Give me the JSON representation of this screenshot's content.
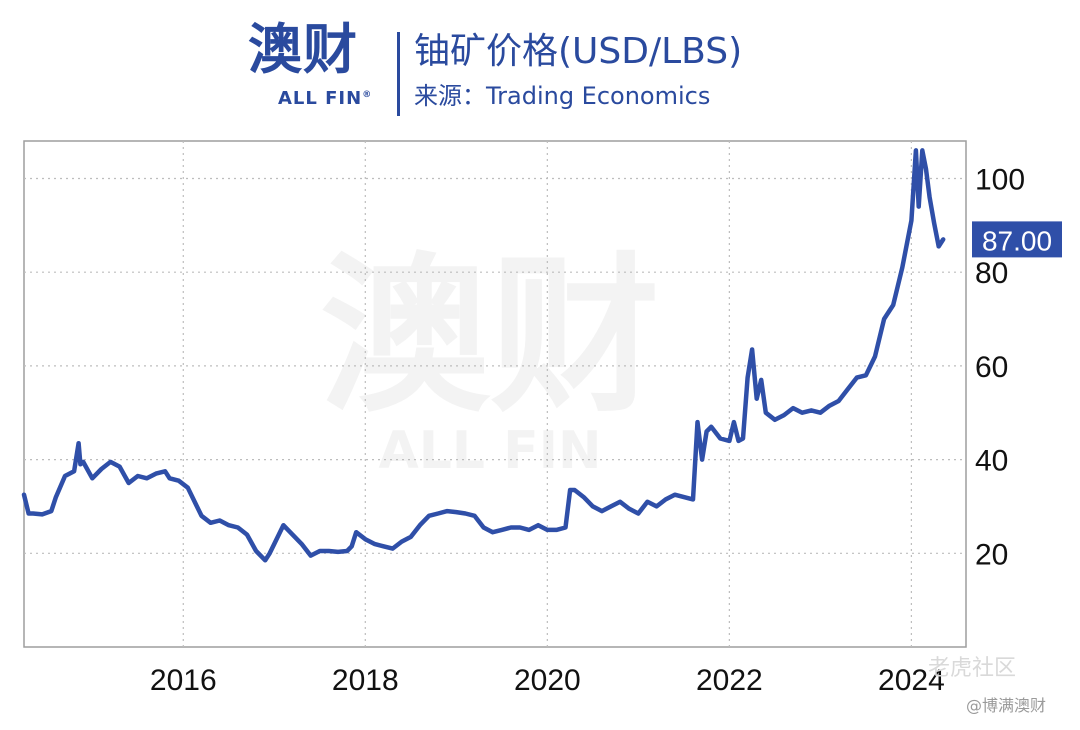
{
  "header": {
    "logo_cn": "澳财",
    "logo_en": "ALL FIN",
    "title": "铀矿价格(USD/LBS)",
    "source": "来源：Trading Economics"
  },
  "watermark": {
    "cn": "澳财",
    "en": "ALL FIN"
  },
  "footer": {
    "note1": "老虎社区",
    "note2": "@博满澳财"
  },
  "colors": {
    "brand": "#2a4a9e",
    "line": "#2f4fa8",
    "grid": "#bdbdbd",
    "axis": "#9e9e9e",
    "last_label_bg": "#2f4fa8"
  },
  "chart_data": {
    "type": "line",
    "title": "铀矿价格(USD/LBS)",
    "xlabel": "",
    "ylabel": "",
    "xlim": [
      2014.25,
      2024.6
    ],
    "ylim": [
      0,
      108
    ],
    "x_ticks": [
      "2016",
      "2018",
      "2020",
      "2022",
      "2024"
    ],
    "x_tick_values": [
      2016,
      2018,
      2020,
      2022,
      2024
    ],
    "y_ticks": [
      "20",
      "40",
      "60",
      "80",
      "100"
    ],
    "y_tick_values": [
      20,
      40,
      60,
      80,
      100
    ],
    "grid": true,
    "y_axis_side": "right",
    "last_value_label": "87.00",
    "series": [
      {
        "x": [
          2014.25,
          2014.3,
          2014.35,
          2014.45,
          2014.55,
          2014.6,
          2014.7,
          2014.8,
          2014.85,
          2014.87,
          2014.9,
          2015.0,
          2015.1,
          2015.2,
          2015.3,
          2015.4,
          2015.5,
          2015.6,
          2015.7,
          2015.8,
          2015.85,
          2015.95,
          2016.05,
          2016.15,
          2016.2,
          2016.3,
          2016.4,
          2016.5,
          2016.6,
          2016.7,
          2016.8,
          2016.9,
          2016.95,
          2017.0,
          2017.1,
          2017.2,
          2017.3,
          2017.4,
          2017.5,
          2017.6,
          2017.7,
          2017.8,
          2017.85,
          2017.9,
          2018.0,
          2018.1,
          2018.2,
          2018.3,
          2018.4,
          2018.5,
          2018.6,
          2018.7,
          2018.8,
          2018.9,
          2019.0,
          2019.1,
          2019.2,
          2019.3,
          2019.4,
          2019.5,
          2019.6,
          2019.7,
          2019.8,
          2019.9,
          2020.0,
          2020.1,
          2020.2,
          2020.25,
          2020.3,
          2020.4,
          2020.5,
          2020.6,
          2020.7,
          2020.8,
          2020.9,
          2021.0,
          2021.1,
          2021.2,
          2021.3,
          2021.4,
          2021.5,
          2021.6,
          2021.65,
          2021.7,
          2021.75,
          2021.8,
          2021.9,
          2022.0,
          2022.05,
          2022.1,
          2022.15,
          2022.2,
          2022.25,
          2022.3,
          2022.35,
          2022.4,
          2022.5,
          2022.6,
          2022.7,
          2022.8,
          2022.9,
          2023.0,
          2023.1,
          2023.2,
          2023.3,
          2023.4,
          2023.5,
          2023.6,
          2023.7,
          2023.8,
          2023.9,
          2024.0,
          2024.05,
          2024.08,
          2024.12,
          2024.16,
          2024.2,
          2024.25,
          2024.3,
          2024.35
        ],
        "y": [
          32.5,
          28.5,
          28.5,
          28.3,
          29.0,
          32.0,
          36.5,
          37.5,
          43.5,
          39.0,
          39.5,
          36.0,
          38.0,
          39.5,
          38.5,
          35.0,
          36.5,
          36.0,
          37.0,
          37.5,
          36.0,
          35.5,
          34.0,
          30.0,
          28.0,
          26.5,
          27.0,
          26.0,
          25.5,
          24.0,
          20.5,
          18.5,
          20.0,
          22.0,
          26.0,
          24.0,
          22.0,
          19.5,
          20.5,
          20.5,
          20.3,
          20.5,
          21.5,
          24.5,
          23.0,
          22.0,
          21.5,
          21.0,
          22.5,
          23.5,
          26.0,
          28.0,
          28.5,
          29.0,
          28.8,
          28.5,
          28.0,
          25.5,
          24.5,
          25.0,
          25.5,
          25.5,
          25.0,
          26.0,
          25.0,
          25.0,
          25.5,
          33.5,
          33.5,
          32.0,
          30.0,
          29.0,
          30.0,
          31.0,
          29.5,
          28.5,
          31.0,
          30.0,
          31.5,
          32.5,
          32.0,
          31.5,
          48.0,
          40.0,
          46.0,
          47.0,
          44.5,
          44.0,
          48.0,
          44.0,
          44.5,
          57.5,
          63.5,
          53.0,
          57.0,
          50.0,
          48.5,
          49.5,
          51.0,
          50.0,
          50.5,
          50.0,
          51.5,
          52.5,
          55.0,
          57.5,
          58.0,
          62.0,
          70.0,
          73.0,
          81.0,
          91.0,
          106.0,
          94.0,
          106.0,
          102.0,
          96.0,
          90.5,
          85.5,
          87.0
        ]
      }
    ]
  }
}
